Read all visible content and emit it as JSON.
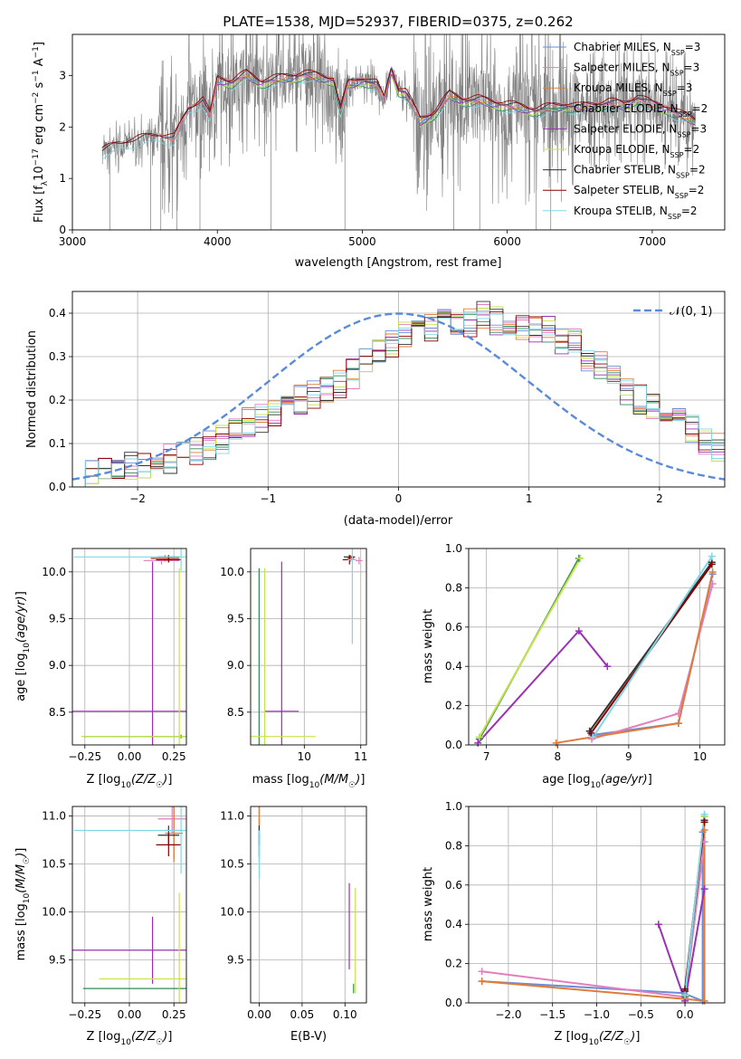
{
  "title": "PLATE=1538, MJD=52937, FIBERID=0375, z=0.262",
  "colors": {
    "Chabrier MILES": "#6b8ed6",
    "Salpeter MILES": "#e37fbd",
    "Kroupa MILES": "#e07b39",
    "Chabrier ELODIE": "#2e8b57",
    "Salpeter ELODIE": "#9b30b5",
    "Kroupa ELODIE": "#c7e34a",
    "Chabrier STELIB": "#333333",
    "Salpeter STELIB": "#8b0000",
    "Kroupa STELIB": "#7fd8e6",
    "data": "#808080",
    "normal": "#5b8bd8",
    "grid": "#b0b0b0"
  },
  "chart_data": [
    {
      "type": "line",
      "title": "PLATE=1538, MJD=52937, FIBERID=0375, z=0.262",
      "xlabel": "wavelength [Angstrom, rest frame]",
      "ylabel_parts": [
        "Flux [f",
        "λ",
        "10",
        "−17",
        " erg cm",
        "−2",
        " s",
        "−1",
        " A",
        "−1",
        "]"
      ],
      "xlim": [
        3000,
        7500
      ],
      "ylim": [
        0,
        3.8
      ],
      "xticks": [
        3000,
        4000,
        5000,
        6000,
        7000
      ],
      "yticks": [
        0,
        1,
        2,
        3
      ],
      "grid": false,
      "legend_position": "top-right",
      "series": [
        {
          "name": "Chabrier MILES",
          "nssp": "3"
        },
        {
          "name": "Salpeter MILES",
          "nssp": "3"
        },
        {
          "name": "Kroupa MILES",
          "nssp": "3"
        },
        {
          "name": "Chabrier ELODIE",
          "nssp": "2"
        },
        {
          "name": "Salpeter ELODIE",
          "nssp": "3"
        },
        {
          "name": "Kroupa ELODIE",
          "nssp": "2"
        },
        {
          "name": "Chabrier STELIB",
          "nssp": "2"
        },
        {
          "name": "Salpeter STELIB",
          "nssp": "2"
        },
        {
          "name": "Kroupa STELIB",
          "nssp": "2"
        }
      ],
      "model_continuum": {
        "x": [
          3200,
          3300,
          3400,
          3500,
          3600,
          3700,
          3800,
          3900,
          3950,
          4000,
          4100,
          4200,
          4300,
          4400,
          4500,
          4600,
          4700,
          4800,
          4850,
          4900,
          5000,
          5100,
          5150,
          5200,
          5250,
          5300,
          5400,
          5500,
          5600,
          5700,
          5800,
          5900,
          6000,
          6100,
          6200,
          6300,
          6400,
          6500,
          6600,
          6700,
          6800,
          6900,
          7000,
          7100,
          7200,
          7300
        ],
        "y": [
          1.5,
          1.6,
          1.7,
          1.75,
          1.8,
          1.75,
          2.3,
          2.5,
          2.2,
          2.9,
          2.85,
          3.0,
          2.85,
          2.9,
          2.95,
          3.0,
          2.95,
          2.9,
          2.3,
          2.8,
          2.9,
          2.8,
          2.5,
          3.1,
          2.7,
          2.65,
          2.1,
          2.25,
          2.6,
          2.5,
          2.5,
          2.45,
          2.4,
          2.35,
          2.3,
          2.35,
          2.4,
          2.35,
          2.4,
          2.45,
          2.4,
          2.55,
          2.4,
          2.35,
          2.2,
          2.1
        ]
      }
    },
    {
      "type": "line",
      "xlabel": "(data-model)/error",
      "ylabel": "Normed distribution",
      "xlim": [
        -2.5,
        2.5
      ],
      "ylim": [
        0,
        0.45
      ],
      "xticks": [
        -2,
        -1,
        0,
        1,
        2
      ],
      "yticks": [
        0.0,
        0.1,
        0.2,
        0.3,
        0.4
      ],
      "grid": true,
      "legend_position": "top-right",
      "reference_label": "𝒩(0, 1)",
      "reference_curve": "normal pdf, mean 0, sigma 1",
      "histogram_bin_edges_start": -2.5,
      "histogram_bin_width": 0.1,
      "histogram_base_values": [
        0.025,
        0.03,
        0.035,
        0.04,
        0.045,
        0.05,
        0.055,
        0.065,
        0.075,
        0.085,
        0.095,
        0.11,
        0.13,
        0.15,
        0.16,
        0.17,
        0.18,
        0.2,
        0.21,
        0.22,
        0.24,
        0.26,
        0.29,
        0.31,
        0.33,
        0.35,
        0.36,
        0.37,
        0.375,
        0.37,
        0.38,
        0.4,
        0.38,
        0.37,
        0.37,
        0.36,
        0.36,
        0.33,
        0.33,
        0.3,
        0.28,
        0.26,
        0.22,
        0.2,
        0.18,
        0.17,
        0.16,
        0.13,
        0.1,
        0.09
      ]
    },
    {
      "type": "scatter",
      "xlabel": "Z [log10(Z/Z☉)]",
      "ylabel": "age  [log10(age/yr)]",
      "xlim": [
        -0.32,
        0.32
      ],
      "ylim": [
        8.15,
        10.25
      ],
      "xticks": [
        -0.25,
        0.0,
        0.25
      ],
      "yticks": [
        8.5,
        9.0,
        9.5,
        10.0
      ],
      "grid": true,
      "points": [
        {
          "series": "Chabrier MILES",
          "x": 0.2,
          "y": 10.15,
          "xerr": 0.08,
          "yerr": 0.03
        },
        {
          "series": "Salpeter MILES",
          "x": 0.18,
          "y": 10.12,
          "xerr": 0.1,
          "yerr": 0.04
        },
        {
          "series": "Kroupa MILES",
          "x": 0.2,
          "y": 10.14,
          "xerr": 0.08,
          "yerr": 0.03
        },
        {
          "series": "Chabrier ELODIE",
          "x": 0.29,
          "y": 8.24,
          "xerr": 0.55,
          "yerr": 0.02
        },
        {
          "series": "Salpeter ELODIE",
          "x": 0.13,
          "y": 8.51,
          "xerr": 0.5,
          "yerr": 1.6
        },
        {
          "series": "Kroupa ELODIE",
          "x": 0.28,
          "y": 8.24,
          "xerr": 0.55,
          "yerr": 1.8
        },
        {
          "series": "Chabrier STELIB",
          "x": 0.22,
          "y": 10.16,
          "xerr": 0.06,
          "yerr": 0.02
        },
        {
          "series": "Salpeter STELIB",
          "x": 0.22,
          "y": 10.13,
          "xerr": 0.07,
          "yerr": 0.03
        },
        {
          "series": "Kroupa STELIB",
          "x": 0.29,
          "y": 10.16,
          "xerr": 0.6,
          "yerr": 0.15
        }
      ]
    },
    {
      "type": "scatter",
      "xlabel": "mass [log10(M/M☉)]",
      "xlim": [
        9.05,
        11.1
      ],
      "ylim": [
        8.15,
        10.25
      ],
      "xticks": [
        10,
        11
      ],
      "yticks": [
        8.5,
        9.0,
        9.5,
        10.0
      ],
      "grid": true,
      "points": [
        {
          "series": "Chabrier MILES",
          "x": 10.82,
          "y": 10.15,
          "xerr": 0.06,
          "yerr": 0.03
        },
        {
          "series": "Salpeter MILES",
          "x": 10.97,
          "y": 10.12,
          "xerr": 0.06,
          "yerr": 0.04
        },
        {
          "series": "Kroupa MILES",
          "x": 10.82,
          "y": 10.14,
          "xerr": 0.06,
          "yerr": 0.03
        },
        {
          "series": "Chabrier ELODIE",
          "x": 9.2,
          "y": 8.24,
          "xerr": 0.0,
          "yerr": 1.8
        },
        {
          "series": "Salpeter ELODIE",
          "x": 9.6,
          "y": 8.51,
          "xerr": 0.3,
          "yerr": 1.6
        },
        {
          "series": "Kroupa ELODIE",
          "x": 9.3,
          "y": 8.24,
          "xerr": 0.9,
          "yerr": 1.8
        },
        {
          "series": "Chabrier STELIB",
          "x": 10.8,
          "y": 10.16,
          "xerr": 0.1,
          "yerr": 0.02
        },
        {
          "series": "Salpeter STELIB",
          "x": 10.8,
          "y": 10.13,
          "xerr": 0.12,
          "yerr": 0.05
        },
        {
          "series": "Kroupa STELIB",
          "x": 10.85,
          "y": 10.13,
          "xerr": 0.08,
          "yerr": 0.9
        }
      ]
    },
    {
      "type": "line",
      "xlabel": "age  [log10(age/yr)]",
      "ylabel": "mass weight",
      "xlim": [
        6.75,
        10.35
      ],
      "ylim": [
        0,
        1.0
      ],
      "xticks": [
        7,
        8,
        9,
        10
      ],
      "yticks": [
        0.0,
        0.2,
        0.4,
        0.6,
        0.8,
        1.0
      ],
      "grid": true,
      "series": [
        {
          "name": "Chabrier MILES",
          "x": [
            8.48,
            9.7,
            10.18
          ],
          "y": [
            0.05,
            0.11,
            0.87
          ]
        },
        {
          "name": "Salpeter MILES",
          "x": [
            8.48,
            9.7,
            10.18
          ],
          "y": [
            0.03,
            0.16,
            0.82
          ]
        },
        {
          "name": "Kroupa MILES",
          "x": [
            7.98,
            9.7,
            10.18
          ],
          "y": [
            0.01,
            0.11,
            0.88
          ]
        },
        {
          "name": "Chabrier ELODIE",
          "x": [
            6.9,
            8.3
          ],
          "y": [
            0.03,
            0.95
          ]
        },
        {
          "name": "Salpeter ELODIE",
          "x": [
            6.88,
            8.3,
            8.7
          ],
          "y": [
            0.01,
            0.58,
            0.4
          ]
        },
        {
          "name": "Kroupa ELODIE",
          "x": [
            6.9,
            8.32
          ],
          "y": [
            0.04,
            0.95
          ]
        },
        {
          "name": "Chabrier STELIB",
          "x": [
            8.45,
            10.17
          ],
          "y": [
            0.07,
            0.93
          ]
        },
        {
          "name": "Salpeter STELIB",
          "x": [
            8.47,
            10.17
          ],
          "y": [
            0.06,
            0.92
          ]
        },
        {
          "name": "Kroupa STELIB",
          "x": [
            8.5,
            10.17
          ],
          "y": [
            0.04,
            0.96
          ]
        }
      ]
    },
    {
      "type": "scatter",
      "xlabel": "Z [log10(Z/Z☉)]",
      "ylabel": "mass [log10(M/M☉)]",
      "xlim": [
        -0.32,
        0.32
      ],
      "ylim": [
        9.05,
        11.1
      ],
      "xticks": [
        -0.25,
        0.0,
        0.25
      ],
      "yticks": [
        9.5,
        10.0,
        10.5,
        11.0
      ],
      "grid": true,
      "points": [
        {
          "series": "Chabrier MILES",
          "x": 0.25,
          "y": 10.85,
          "xerr": 0.05,
          "yerr": 0.3
        },
        {
          "series": "Salpeter MILES",
          "x": 0.24,
          "y": 10.97,
          "xerr": 0.08,
          "yerr": 0.15
        },
        {
          "series": "Kroupa MILES",
          "x": 0.25,
          "y": 10.82,
          "xerr": 0.05,
          "yerr": 0.3
        },
        {
          "series": "Chabrier ELODIE",
          "x": 0.29,
          "y": 9.2,
          "xerr": 0.55,
          "yerr": 0.0
        },
        {
          "series": "Salpeter ELODIE",
          "x": 0.13,
          "y": 9.6,
          "xerr": 0.5,
          "yerr": 0.35
        },
        {
          "series": "Kroupa ELODIE",
          "x": 0.28,
          "y": 9.3,
          "xerr": 0.45,
          "yerr": 0.9
        },
        {
          "series": "Chabrier STELIB",
          "x": 0.22,
          "y": 10.8,
          "xerr": 0.06,
          "yerr": 0.1
        },
        {
          "series": "Salpeter STELIB",
          "x": 0.22,
          "y": 10.7,
          "xerr": 0.07,
          "yerr": 0.12
        },
        {
          "series": "Kroupa STELIB",
          "x": 0.29,
          "y": 10.85,
          "xerr": 0.6,
          "yerr": 0.45
        }
      ]
    },
    {
      "type": "scatter",
      "xlabel": "E(B-V)",
      "xlim": [
        -0.01,
        0.125
      ],
      "ylim": [
        9.05,
        11.1
      ],
      "xticks": [
        0.0,
        0.05,
        0.1
      ],
      "yticks": [
        9.5,
        10.0,
        10.5,
        11.0
      ],
      "grid": true,
      "points": [
        {
          "series": "Chabrier MILES",
          "x": 0.0,
          "y": 10.85,
          "yerr": 0.3
        },
        {
          "series": "Salpeter MILES",
          "x": 0.0,
          "y": 10.97,
          "yerr": 0.15
        },
        {
          "series": "Kroupa MILES",
          "x": 0.0,
          "y": 10.82,
          "yerr": 0.3
        },
        {
          "series": "Chabrier ELODIE",
          "x": 0.11,
          "y": 9.2,
          "yerr": 0.05
        },
        {
          "series": "Salpeter ELODIE",
          "x": 0.105,
          "y": 9.85,
          "yerr": 0.45
        },
        {
          "series": "Kroupa ELODIE",
          "x": 0.112,
          "y": 9.7,
          "yerr": 0.55
        },
        {
          "series": "Chabrier STELIB",
          "x": 0.0,
          "y": 10.8,
          "yerr": 0.1
        },
        {
          "series": "Salpeter STELIB",
          "x": 0.0,
          "y": 10.7,
          "yerr": 0.12
        },
        {
          "series": "Kroupa STELIB",
          "x": 0.0,
          "y": 10.6,
          "yerr": 0.25
        }
      ]
    },
    {
      "type": "line",
      "xlabel": "Z [log10(Z/Z☉)]",
      "ylabel": "mass weight",
      "xlim": [
        -2.45,
        0.45
      ],
      "ylim": [
        0,
        1.0
      ],
      "xticks": [
        -2.0,
        -1.5,
        -1.0,
        -0.5,
        0.0
      ],
      "yticks": [
        0.0,
        0.2,
        0.4,
        0.6,
        0.8,
        1.0
      ],
      "grid": true,
      "series": [
        {
          "name": "Chabrier MILES",
          "x": [
            -2.3,
            -0.02,
            0.2,
            0.2
          ],
          "y": [
            0.11,
            0.05,
            0.01,
            0.87
          ]
        },
        {
          "name": "Salpeter MILES",
          "x": [
            -2.3,
            0.0,
            0.22
          ],
          "y": [
            0.16,
            0.03,
            0.82
          ]
        },
        {
          "name": "Kroupa MILES",
          "x": [
            -2.3,
            0.0,
            0.22,
            0.22
          ],
          "y": [
            0.11,
            0.02,
            0.01,
            0.88
          ]
        },
        {
          "name": "Chabrier ELODIE",
          "x": [
            0.0,
            0.22
          ],
          "y": [
            0.03,
            0.95
          ]
        },
        {
          "name": "Salpeter ELODIE",
          "x": [
            -0.3,
            0.0,
            0.22
          ],
          "y": [
            0.4,
            0.01,
            0.58
          ]
        },
        {
          "name": "Kroupa ELODIE",
          "x": [
            0.0,
            0.22
          ],
          "y": [
            0.04,
            0.95
          ]
        },
        {
          "name": "Chabrier STELIB",
          "x": [
            0.0,
            0.22
          ],
          "y": [
            0.07,
            0.93
          ]
        },
        {
          "name": "Salpeter STELIB",
          "x": [
            0.0,
            0.22
          ],
          "y": [
            0.06,
            0.92
          ]
        },
        {
          "name": "Kroupa STELIB",
          "x": [
            0.0,
            0.22
          ],
          "y": [
            0.04,
            0.96
          ]
        }
      ]
    }
  ]
}
